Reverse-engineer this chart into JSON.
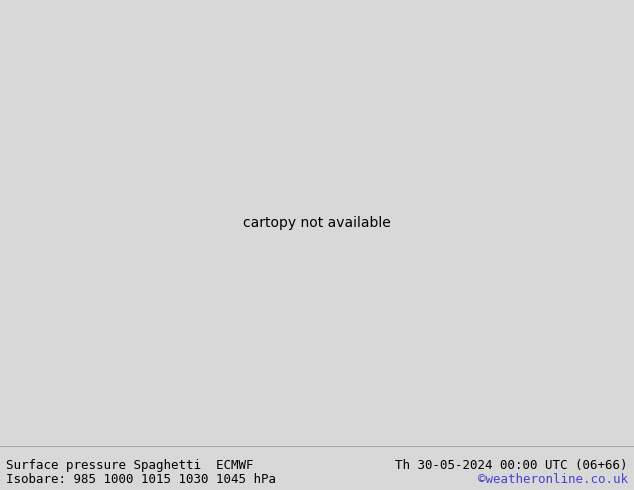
{
  "title_left": "Surface pressure Spaghetti  ECMWF",
  "title_right": "Th 30-05-2024 00:00 UTC (06+66)",
  "subtitle": "Isobare: 985 1000 1015 1030 1045 hPa",
  "watermark": "©weatheronline.co.uk",
  "watermark_color": "#4444cc",
  "bg_color_ocean": "#d8d8d8",
  "bg_color_land_main": "#c0eeaa",
  "bg_color_land_other": "#d0f0b8",
  "germany_border_color": "#000000",
  "other_border_color": "#888888",
  "contour_colors_gray": "#808080",
  "isobars": [
    985,
    1000,
    1015,
    1030,
    1045
  ],
  "ensemble_colors": [
    "#808080",
    "#ff00ff",
    "#ff0000",
    "#00aaff",
    "#ffaa00",
    "#dddd00",
    "#00cc00"
  ],
  "label_color": "#333333",
  "bottom_bar_color": "#ffffff",
  "title_fontsize": 9,
  "label_fontsize": 6,
  "figsize": [
    6.34,
    4.9
  ],
  "dpi": 100,
  "lon_min": -6,
  "lon_max": 22,
  "lat_min": 43,
  "lat_max": 58
}
